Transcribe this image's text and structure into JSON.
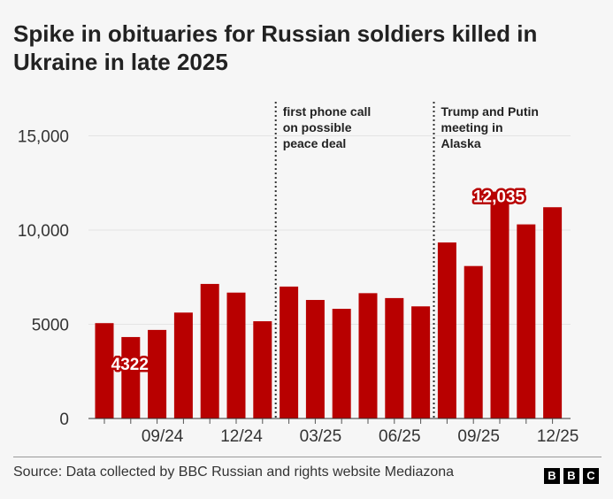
{
  "chart_data": {
    "type": "bar",
    "title": "Spike in obituaries for Russian soldiers killed in Ukraine in late 2025",
    "categories": [
      "07/24",
      "08/24",
      "09/24",
      "10/24",
      "11/24",
      "12/24",
      "01/25",
      "02/25",
      "03/25",
      "04/25",
      "05/25",
      "06/25",
      "07/25",
      "08/25",
      "09/25",
      "10/25",
      "11/25",
      "12/25"
    ],
    "values": [
      5060,
      4322,
      4700,
      5620,
      7140,
      6680,
      5160,
      7000,
      6290,
      5820,
      6650,
      6390,
      5950,
      9340,
      8090,
      12035,
      10300,
      11210
    ],
    "x_tick_labels": [
      {
        "category": "09/24",
        "label": "09/24"
      },
      {
        "category": "12/24",
        "label": "12/24"
      },
      {
        "category": "03/25",
        "label": "03/25"
      },
      {
        "category": "06/25",
        "label": "06/25"
      },
      {
        "category": "09/25",
        "label": "09/25"
      },
      {
        "category": "12/25",
        "label": "12/25"
      }
    ],
    "y_ticks": [
      {
        "value": 0,
        "label": "0"
      },
      {
        "value": 5000,
        "label": "5000"
      },
      {
        "value": 10000,
        "label": "10,000"
      },
      {
        "value": 15000,
        "label": "15,000"
      }
    ],
    "ylim": [
      0,
      16000
    ],
    "xlabel": "",
    "ylabel": "",
    "grid": true,
    "bar_color": "#b80000",
    "data_labels": [
      {
        "category": "08/24",
        "label": "4322"
      },
      {
        "category": "10/25",
        "label": "12,035"
      }
    ],
    "annotations": [
      {
        "between": [
          "01/25",
          "02/25"
        ],
        "lines": [
          "first phone call",
          "on possible",
          "peace deal"
        ]
      },
      {
        "between": [
          "07/25",
          "08/25"
        ],
        "lines": [
          "Trump and Putin",
          "meeting in",
          "Alaska"
        ]
      }
    ]
  },
  "footer": {
    "source": "Source: Data collected by BBC Russian and rights website Mediazona",
    "logo": [
      "B",
      "B",
      "C"
    ]
  }
}
